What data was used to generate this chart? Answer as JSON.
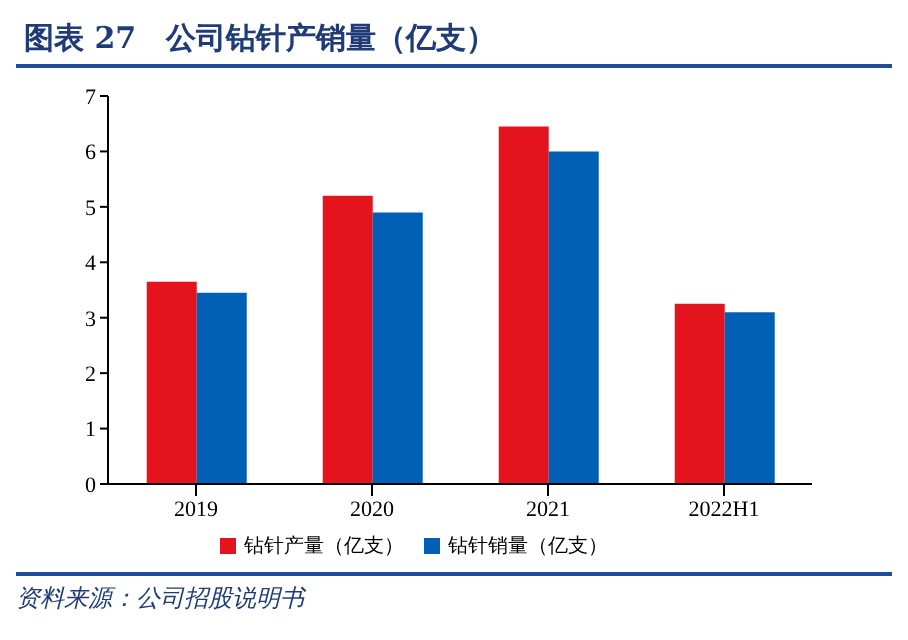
{
  "chart_data": {
    "type": "bar",
    "title": "图表 27　公司钻针产销量（亿支）",
    "categories": [
      "2019",
      "2020",
      "2021",
      "2022H1"
    ],
    "series": [
      {
        "name": "钻针产量（亿支）",
        "color": "#e3141e",
        "values": [
          3.65,
          5.2,
          6.45,
          3.25
        ]
      },
      {
        "name": "钻针销量（亿支）",
        "color": "#0060b6",
        "values": [
          3.45,
          4.9,
          6.0,
          3.1
        ]
      }
    ],
    "ylim": [
      0,
      7
    ],
    "yticks": [
      0,
      1,
      2,
      3,
      4,
      5,
      6,
      7
    ],
    "grid": false,
    "legend": "bottom",
    "annotations": [
      "资料来源：公司招股说明书"
    ]
  }
}
